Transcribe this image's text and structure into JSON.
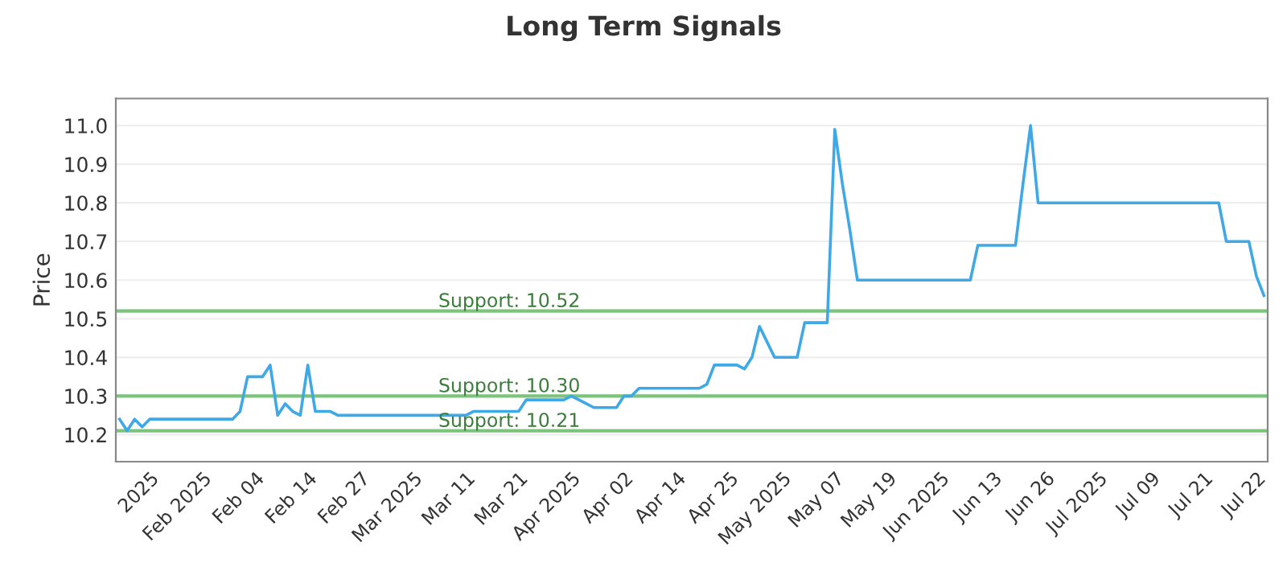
{
  "chart_data": {
    "type": "line",
    "title": "Long Term Signals",
    "ylabel": "Price",
    "categories": [
      null,
      null,
      null,
      null,
      "2025",
      null,
      null,
      null,
      null,
      null,
      null,
      "Feb 2025",
      null,
      null,
      null,
      null,
      null,
      null,
      "Feb 04",
      null,
      null,
      null,
      null,
      null,
      null,
      "Feb 14",
      null,
      null,
      null,
      null,
      null,
      null,
      "Feb 27",
      null,
      null,
      null,
      null,
      null,
      null,
      "Mar 2025",
      null,
      null,
      null,
      null,
      null,
      null,
      "Mar 11",
      null,
      null,
      null,
      null,
      null,
      null,
      "Mar 21",
      null,
      null,
      null,
      null,
      null,
      null,
      "Apr 2025",
      null,
      null,
      null,
      null,
      null,
      null,
      "Apr 02",
      null,
      null,
      null,
      null,
      null,
      null,
      "Apr 14",
      null,
      null,
      null,
      null,
      null,
      null,
      "Apr 25",
      null,
      null,
      null,
      null,
      null,
      null,
      "May 2025",
      null,
      null,
      null,
      null,
      null,
      null,
      "May 07",
      null,
      null,
      null,
      null,
      null,
      null,
      "May 19",
      null,
      null,
      null,
      null,
      null,
      null,
      "Jun 2025",
      null,
      null,
      null,
      null,
      null,
      null,
      "Jun 13",
      null,
      null,
      null,
      null,
      null,
      null,
      "Jun 26",
      null,
      null,
      null,
      null,
      null,
      null,
      "Jul 2025",
      null,
      null,
      null,
      null,
      null,
      null,
      "Jul 09",
      null,
      null,
      null,
      null,
      null,
      null,
      "Jul 21",
      null,
      null,
      null,
      null,
      null,
      null,
      "Jul 22",
      null
    ],
    "series": [
      {
        "color": "#3fa9e8",
        "values": [
          10.24,
          10.21,
          10.24,
          10.22,
          10.24,
          10.24,
          10.24,
          10.24,
          10.24,
          10.24,
          10.24,
          10.24,
          10.24,
          10.24,
          10.24,
          10.24,
          10.26,
          10.35,
          10.35,
          10.35,
          10.38,
          10.25,
          10.28,
          10.26,
          10.25,
          10.38,
          10.26,
          10.26,
          10.26,
          10.25,
          10.25,
          10.25,
          10.25,
          10.25,
          10.25,
          10.25,
          10.25,
          10.25,
          10.25,
          10.25,
          10.25,
          10.25,
          10.25,
          10.25,
          10.25,
          10.25,
          10.25,
          10.26,
          10.26,
          10.26,
          10.26,
          10.26,
          10.26,
          10.26,
          10.29,
          10.29,
          10.29,
          10.29,
          10.29,
          10.29,
          10.3,
          10.29,
          10.28,
          10.27,
          10.27,
          10.27,
          10.27,
          10.3,
          10.3,
          10.32,
          10.32,
          10.32,
          10.32,
          10.32,
          10.32,
          10.32,
          10.32,
          10.32,
          10.33,
          10.38,
          10.38,
          10.38,
          10.38,
          10.37,
          10.4,
          10.48,
          10.44,
          10.4,
          10.4,
          10.4,
          10.4,
          10.49,
          10.49,
          10.49,
          10.49,
          10.99,
          10.85,
          10.73,
          10.6,
          10.6,
          10.6,
          10.6,
          10.6,
          10.6,
          10.6,
          10.6,
          10.6,
          10.6,
          10.6,
          10.6,
          10.6,
          10.6,
          10.6,
          10.6,
          10.69,
          10.69,
          10.69,
          10.69,
          10.69,
          10.69,
          10.85,
          11.0,
          10.8,
          10.8,
          10.8,
          10.8,
          10.8,
          10.8,
          10.8,
          10.8,
          10.8,
          10.8,
          10.8,
          10.8,
          10.8,
          10.8,
          10.8,
          10.8,
          10.8,
          10.8,
          10.8,
          10.8,
          10.8,
          10.8,
          10.8,
          10.8,
          10.8,
          10.7,
          10.7,
          10.7,
          10.7,
          10.61,
          10.56
        ]
      }
    ],
    "ylim": [
      10.13,
      11.07
    ],
    "yticks": [
      10.2,
      10.3,
      10.4,
      10.5,
      10.6,
      10.7,
      10.8,
      10.9,
      {
        "value": 11.0,
        "label": "11.0"
      }
    ],
    "ref_lines": [
      {
        "axis": "y",
        "value": 10.52,
        "label": "Support: 10.52",
        "color": "#7cc47c"
      },
      {
        "axis": "y",
        "value": 10.3,
        "label": "Support: 10.30",
        "color": "#7cc47c"
      },
      {
        "axis": "y",
        "value": 10.21,
        "label": "Support: 10.21",
        "color": "#7cc47c"
      }
    ],
    "grid": "y",
    "legend": false,
    "marker": "none",
    "line_style": "solid"
  }
}
